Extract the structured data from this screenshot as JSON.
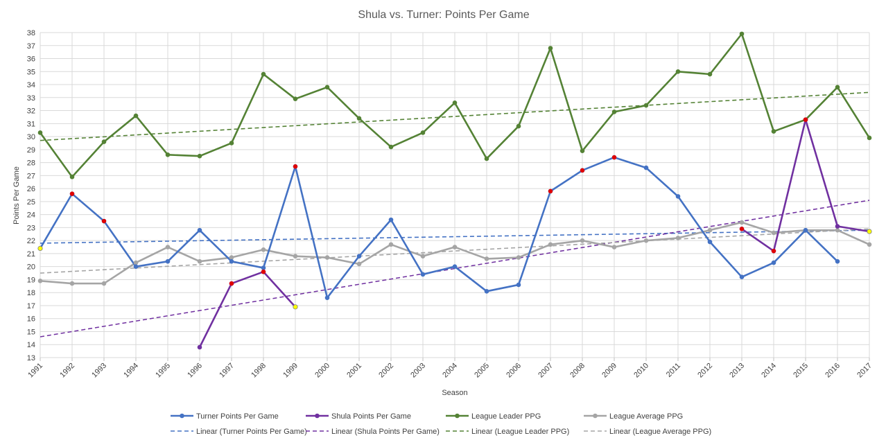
{
  "chart_data": {
    "type": "line",
    "title": "Shula vs. Turner: Points Per Game",
    "xlabel": "Season",
    "ylabel": "Points Per Game",
    "ylim": [
      13,
      38
    ],
    "y_ticks": [
      13,
      14,
      15,
      16,
      17,
      18,
      19,
      20,
      21,
      22,
      23,
      24,
      25,
      26,
      27,
      28,
      29,
      30,
      31,
      32,
      33,
      34,
      35,
      36,
      37,
      38
    ],
    "grid": true,
    "legend_position": "bottom",
    "categories": [
      "1991",
      "1992",
      "1993",
      "1994",
      "1995",
      "1996",
      "1997",
      "1998",
      "1999",
      "2000",
      "2001",
      "2002",
      "2003",
      "2004",
      "2005",
      "2006",
      "2007",
      "2008",
      "2009",
      "2010",
      "2011",
      "2012",
      "2013",
      "2014",
      "2015",
      "2016",
      "2017"
    ],
    "series": [
      {
        "name": "League Average PPG",
        "color": "#a5a5a5",
        "values": [
          18.9,
          18.7,
          18.7,
          20.3,
          21.5,
          20.4,
          20.7,
          21.3,
          20.8,
          20.7,
          20.2,
          21.7,
          20.8,
          21.5,
          20.6,
          20.7,
          21.7,
          22.0,
          21.5,
          22.0,
          22.2,
          22.8,
          23.4,
          22.6,
          22.8,
          22.8,
          21.7
        ]
      },
      {
        "name": "League Leader PPG",
        "color": "#548235",
        "values": [
          30.3,
          26.9,
          29.6,
          31.6,
          28.6,
          28.5,
          29.5,
          34.8,
          32.9,
          33.8,
          31.4,
          29.2,
          30.3,
          32.6,
          28.3,
          30.8,
          36.8,
          28.9,
          31.9,
          32.4,
          35.0,
          34.8,
          37.9,
          30.4,
          31.3,
          33.8,
          29.9
        ]
      },
      {
        "name": "Turner Points Per Game",
        "color": "#4472c4",
        "values": [
          21.4,
          25.6,
          23.5,
          20.0,
          20.4,
          22.8,
          20.4,
          19.9,
          27.7,
          17.6,
          20.8,
          23.6,
          19.4,
          20.0,
          18.1,
          18.6,
          25.8,
          27.4,
          28.4,
          27.6,
          25.4,
          21.9,
          19.2,
          20.3,
          22.8,
          20.4,
          null
        ]
      },
      {
        "name": "Shula Points Per Game",
        "color": "#7030a0",
        "values": [
          null,
          null,
          null,
          null,
          null,
          13.8,
          18.7,
          19.6,
          16.9,
          null,
          null,
          null,
          null,
          null,
          null,
          null,
          null,
          null,
          null,
          null,
          null,
          null,
          22.9,
          21.2,
          31.3,
          23.1,
          22.7
        ]
      }
    ],
    "trendlines": [
      {
        "name": "Linear (Turner Points Per Game)",
        "color": "#4472c4",
        "from": 21.8,
        "to": 22.8
      },
      {
        "name": "Linear (Shula Points Per Game)",
        "color": "#7030a0",
        "from": 14.6,
        "to": 25.1
      },
      {
        "name": "Linear (League Leader PPG)",
        "color": "#548235",
        "from": 29.7,
        "to": 33.4
      },
      {
        "name": "Linear (League Average PPG)",
        "color": "#a5a5a5",
        "from": 19.5,
        "to": 22.9
      }
    ],
    "highlight_markers": [
      {
        "x": "1991",
        "y": 21.4,
        "color": "#ffff00"
      },
      {
        "x": "1999",
        "y": 16.9,
        "color": "#ffff00"
      },
      {
        "x": "2017",
        "y": 22.7,
        "color": "#ffff00"
      },
      {
        "x": "1992",
        "y": 25.6,
        "color": "#e00000"
      },
      {
        "x": "1993",
        "y": 23.5,
        "color": "#e00000"
      },
      {
        "x": "1999",
        "y": 27.7,
        "color": "#e00000"
      },
      {
        "x": "2007",
        "y": 25.8,
        "color": "#e00000"
      },
      {
        "x": "2008",
        "y": 27.4,
        "color": "#e00000"
      },
      {
        "x": "2009",
        "y": 28.4,
        "color": "#e00000"
      },
      {
        "x": "1997",
        "y": 18.7,
        "color": "#e00000"
      },
      {
        "x": "1998",
        "y": 19.6,
        "color": "#e00000"
      },
      {
        "x": "2013",
        "y": 22.9,
        "color": "#e00000"
      },
      {
        "x": "2014",
        "y": 21.2,
        "color": "#e00000"
      },
      {
        "x": "2015",
        "y": 31.3,
        "color": "#e00000"
      }
    ],
    "legend": [
      {
        "label": "Turner Points Per Game",
        "color": "#4472c4",
        "style": "solid"
      },
      {
        "label": "Shula Points Per Game",
        "color": "#7030a0",
        "style": "solid"
      },
      {
        "label": "League Leader PPG",
        "color": "#548235",
        "style": "solid"
      },
      {
        "label": "League Average PPG",
        "color": "#a5a5a5",
        "style": "solid"
      },
      {
        "label": "Linear (Turner Points Per Game)",
        "color": "#4472c4",
        "style": "dashed"
      },
      {
        "label": "Linear (Shula Points Per Game)",
        "color": "#7030a0",
        "style": "dashed"
      },
      {
        "label": "Linear (League Leader PPG)",
        "color": "#548235",
        "style": "dashed"
      },
      {
        "label": "Linear (League Average PPG)",
        "color": "#a5a5a5",
        "style": "dashed"
      }
    ]
  }
}
